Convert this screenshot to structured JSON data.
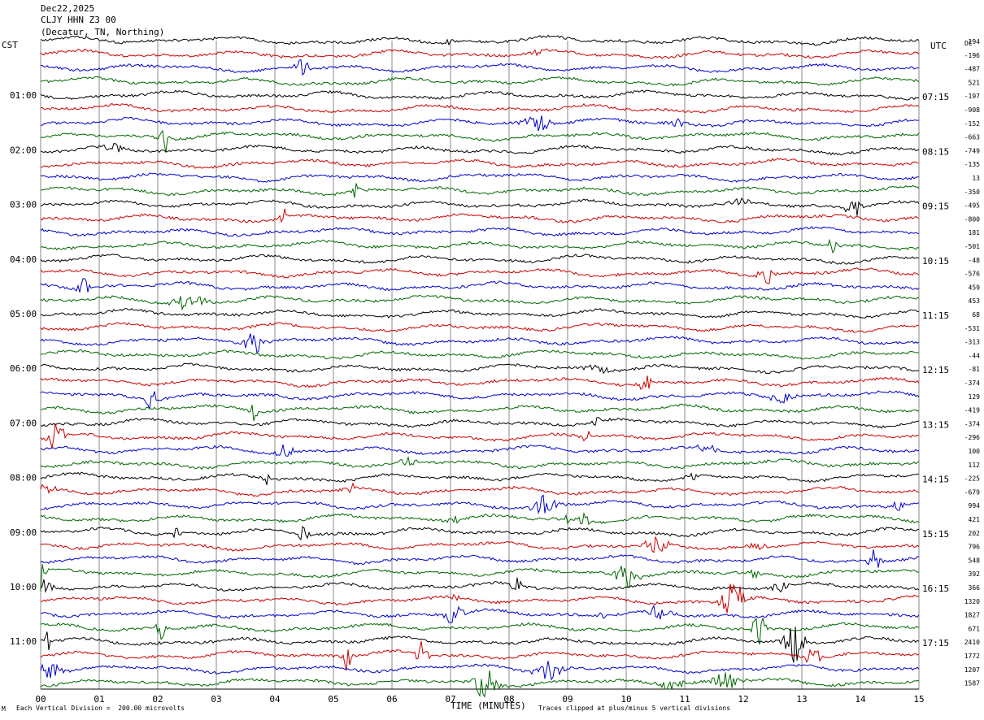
{
  "header": {
    "date": "Dec22,2025",
    "station": "CLJY HHN Z3 00",
    "location": "(Decatur, TN, Northing)"
  },
  "left_zone_label": "CST",
  "right_zone_label": "UTC",
  "dc_label": "DC",
  "footer": {
    "scale": "Each Vertical Division =  200.00 microvolts",
    "clip_note": "Traces clipped at plus/minus 5 vertical divisions",
    "corner_mark": "M"
  },
  "chart_data": {
    "type": "line",
    "xlabel": "TIME (MINUTES)",
    "x_ticks": [
      "00",
      "01",
      "02",
      "03",
      "04",
      "05",
      "06",
      "07",
      "08",
      "09",
      "10",
      "11",
      "12",
      "13",
      "14",
      "15"
    ],
    "xlim": [
      0,
      15
    ],
    "trace_minutes": 15,
    "trace_count": 48,
    "trace_colors": [
      "#000000",
      "#cc0000",
      "#0000cc",
      "#006600"
    ],
    "left_time_labels": [
      "01:00",
      "02:00",
      "03:00",
      "04:00",
      "05:00",
      "06:00",
      "07:00",
      "08:00",
      "09:00",
      "10:00",
      "11:00"
    ],
    "right_time_labels": [
      "07:15",
      "08:15",
      "09:15",
      "10:15",
      "11:15",
      "12:15",
      "13:15",
      "14:15",
      "15:15",
      "16:15",
      "17:15"
    ],
    "dc_offsets": [
      "194",
      "-196",
      "-487",
      "521",
      "-197",
      "-908",
      "-152",
      "-663",
      "-749",
      "-135",
      "13",
      "-350",
      "-495",
      "-800",
      "181",
      "-501",
      "-48",
      "-576",
      "459",
      "453",
      "68",
      "-531",
      "-313",
      "-44",
      "-81",
      "-374",
      "129",
      "-419",
      "-374",
      "-296",
      "100",
      "112",
      "-225",
      "-679",
      "994",
      "421",
      "202",
      "796",
      "548",
      "392",
      "366",
      "1320",
      "1827",
      "671",
      "2410",
      "1772",
      "1207",
      "1587"
    ]
  }
}
